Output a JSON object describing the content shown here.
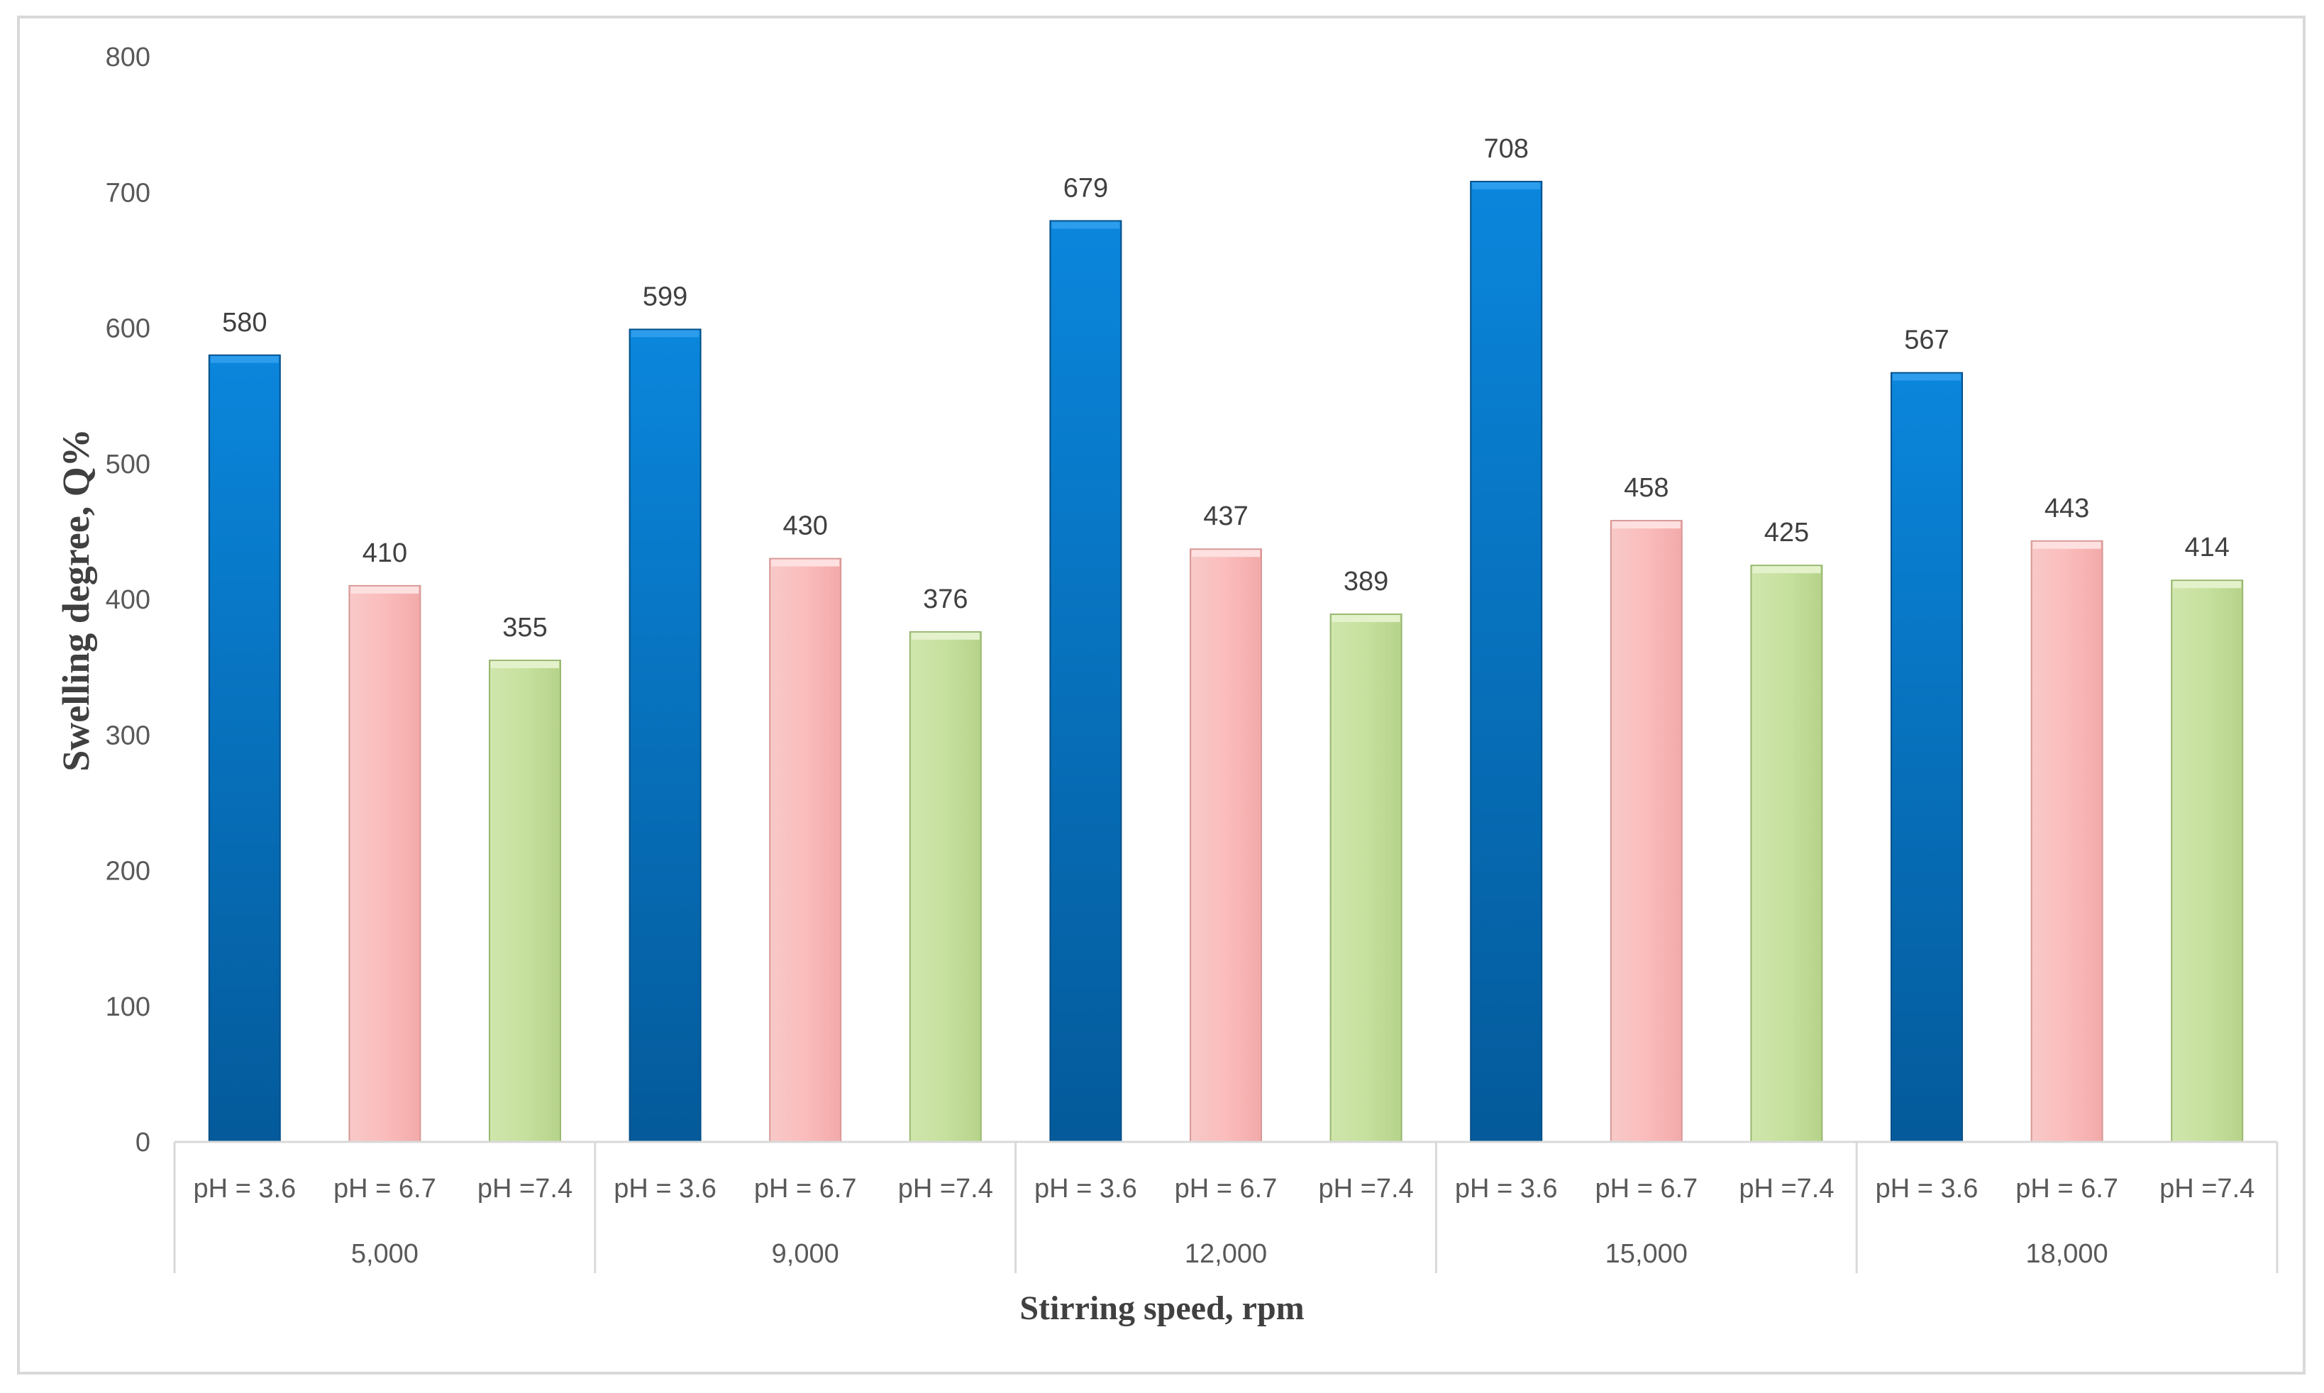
{
  "chart_data": {
    "type": "bar",
    "title": "",
    "xlabel": "Stirring speed, rpm",
    "ylabel": "Swelling degree, Q%",
    "ylim": [
      0,
      800
    ],
    "yticks": [
      "0",
      "100",
      "200",
      "300",
      "400",
      "500",
      "600",
      "700",
      "800"
    ],
    "grid": false,
    "legend": "none",
    "groups": [
      {
        "label": "5,000",
        "bars": [
          {
            "label": "pH = 3.6",
            "value": 580,
            "value_label": "580",
            "color": "#0070c0"
          },
          {
            "label": "pH = 6.7",
            "value": 410,
            "value_label": "410",
            "color": "#f4b6b4"
          },
          {
            "label": "pH =7.4",
            "value": 355,
            "value_label": "355",
            "color": "#c4de9a"
          }
        ]
      },
      {
        "label": "9,000",
        "bars": [
          {
            "label": "pH = 3.6",
            "value": 599,
            "value_label": "599",
            "color": "#0070c0"
          },
          {
            "label": "pH = 6.7",
            "value": 430,
            "value_label": "430",
            "color": "#f4b6b4"
          },
          {
            "label": "pH =7.4",
            "value": 376,
            "value_label": "376",
            "color": "#c4de9a"
          }
        ]
      },
      {
        "label": "12,000",
        "bars": [
          {
            "label": "pH = 3.6",
            "value": 679,
            "value_label": "679",
            "color": "#0070c0"
          },
          {
            "label": "pH = 6.7",
            "value": 437,
            "value_label": "437",
            "color": "#f4b6b4"
          },
          {
            "label": "pH =7.4",
            "value": 389,
            "value_label": "389",
            "color": "#c4de9a"
          }
        ]
      },
      {
        "label": "15,000",
        "bars": [
          {
            "label": "pH = 3.6",
            "value": 708,
            "value_label": "708",
            "color": "#0070c0"
          },
          {
            "label": "pH = 6.7",
            "value": 458,
            "value_label": "458",
            "color": "#f4b6b4"
          },
          {
            "label": "pH =7.4",
            "value": 425,
            "value_label": "425",
            "color": "#c4de9a"
          }
        ]
      },
      {
        "label": "18,000",
        "bars": [
          {
            "label": "pH = 3.6",
            "value": 567,
            "value_label": "567",
            "color": "#0070c0"
          },
          {
            "label": "pH = 6.7",
            "value": 443,
            "value_label": "443",
            "color": "#f4b6b4"
          },
          {
            "label": "pH =7.4",
            "value": 414,
            "value_label": "414",
            "color": "#c4de9a"
          }
        ]
      }
    ]
  }
}
